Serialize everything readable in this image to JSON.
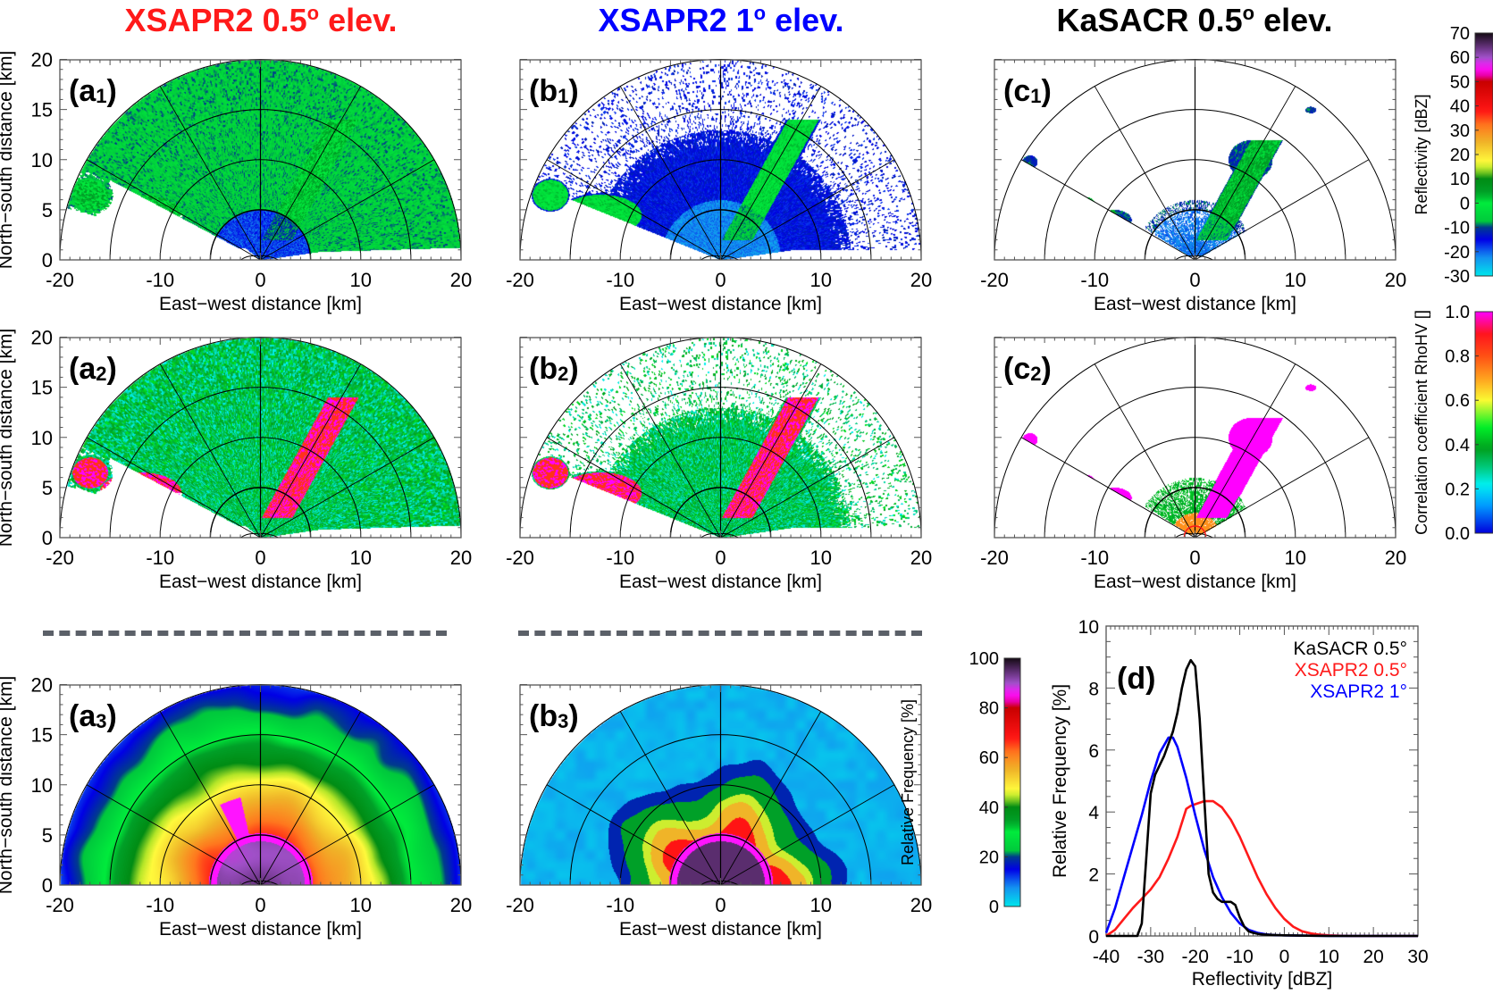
{
  "column_titles": [
    {
      "text": "XSAPR2 0.5° elev.",
      "color": "#ff1a1a"
    },
    {
      "text": "XSAPR2 1° elev.",
      "color": "#0000ff"
    },
    {
      "text": "KaSACR 0.5° elev.",
      "color": "#000000"
    }
  ],
  "axes": {
    "xlabel": "East−west distance [km]",
    "ylabel": "North−south distance [km]",
    "xticks": [
      "-20",
      "-10",
      "0",
      "10",
      "20"
    ],
    "yticks": [
      "0",
      "5",
      "10",
      "15",
      "20"
    ]
  },
  "panels": [
    {
      "id": "a1",
      "label": "(a",
      "sub": "1",
      "field": "reflectivity",
      "radar": "XSAPR2",
      "elevation": "0.5°"
    },
    {
      "id": "b1",
      "label": "(b",
      "sub": "1",
      "field": "reflectivity",
      "radar": "XSAPR2",
      "elevation": "1°"
    },
    {
      "id": "c1",
      "label": "(c",
      "sub": "1",
      "field": "reflectivity",
      "radar": "KaSACR",
      "elevation": "0.5°"
    },
    {
      "id": "a2",
      "label": "(a",
      "sub": "2",
      "field": "rhohv",
      "radar": "XSAPR2",
      "elevation": "0.5°"
    },
    {
      "id": "b2",
      "label": "(b",
      "sub": "2",
      "field": "rhohv",
      "radar": "XSAPR2",
      "elevation": "1°"
    },
    {
      "id": "c2",
      "label": "(c",
      "sub": "2",
      "field": "rhohv",
      "radar": "KaSACR",
      "elevation": "0.5°"
    },
    {
      "id": "a3",
      "label": "(a",
      "sub": "3",
      "field": "frequency",
      "radar": "XSAPR2",
      "elevation": "0.5°"
    },
    {
      "id": "b3",
      "label": "(b",
      "sub": "3",
      "field": "frequency",
      "radar": "XSAPR2",
      "elevation": "1°"
    }
  ],
  "colorbars": {
    "reflectivity": {
      "label": "Reflectivity [dBZ]",
      "ticks": [
        "70",
        "60",
        "50",
        "40",
        "30",
        "20",
        "10",
        "0",
        "-10",
        "-20",
        "-30"
      ],
      "range": [
        -30,
        70
      ]
    },
    "rhohv": {
      "label": "Correlation coefficient RhoHV []",
      "ticks": [
        "1.0",
        "0.8",
        "0.6",
        "0.4",
        "0.2",
        "0.0"
      ],
      "range": [
        0,
        1
      ]
    },
    "frequency": {
      "label": "Relative Frequency [%]",
      "ticks": [
        "100",
        "80",
        "60",
        "40",
        "20",
        "0"
      ],
      "range": [
        0,
        100
      ]
    }
  },
  "chart_data": [
    {
      "type": "heatmap",
      "title": "Radar PPI panels (a1-c2, a3, b3)",
      "xlabel": "East−west distance [km]",
      "ylabel": "North−south distance [km]",
      "xlim": [
        -20,
        20
      ],
      "ylim": [
        0,
        20
      ],
      "range_rings_km": [
        5,
        10,
        15,
        20
      ],
      "azimuth_spokes_deg": [
        -60,
        -30,
        0,
        30,
        60
      ],
      "grid": true
    },
    {
      "type": "line",
      "panel_label": "(d)",
      "title": "",
      "xlabel": "Reflectivity [dBZ]",
      "ylabel": "Relative Frequency [%]",
      "xlim": [
        -40,
        30
      ],
      "ylim": [
        0,
        10
      ],
      "xticks": [
        "-40",
        "-30",
        "-20",
        "-10",
        "0",
        "10",
        "20",
        "30"
      ],
      "yticks": [
        "0",
        "2",
        "4",
        "6",
        "8",
        "10"
      ],
      "legend_position": "top-right",
      "series": [
        {
          "name": "KaSACR 0.5°",
          "color": "#000000",
          "x": [
            -40,
            -33,
            -32,
            -31,
            -30,
            -29,
            -28,
            -27,
            -26,
            -25,
            -24,
            -23,
            -22,
            -21,
            -20,
            -19,
            -18,
            -17,
            -16,
            -15,
            -14,
            -13,
            -12,
            -11,
            -10,
            -9,
            -8,
            -7,
            -6,
            -5,
            -4,
            -2,
            0,
            5,
            10,
            20,
            30
          ],
          "y": [
            0,
            0,
            0.4,
            2.5,
            4.6,
            5.2,
            5.5,
            5.8,
            6.2,
            6.6,
            7.2,
            8.0,
            8.6,
            8.9,
            8.7,
            7.0,
            4.5,
            2.0,
            1.4,
            1.2,
            1.1,
            1.1,
            1.1,
            1.0,
            0.6,
            0.3,
            0.15,
            0.1,
            0.07,
            0.05,
            0.04,
            0.03,
            0.02,
            0.01,
            0,
            0,
            0
          ]
        },
        {
          "name": "XSAPR2 0.5°",
          "color": "#ff1a1a",
          "x": [
            -40,
            -38,
            -36,
            -34,
            -32,
            -30,
            -28,
            -26,
            -24,
            -22,
            -21,
            -20,
            -18,
            -16,
            -14,
            -12,
            -10,
            -8,
            -6,
            -4,
            -2,
            0,
            2,
            4,
            6,
            8,
            10,
            12,
            15,
            20,
            30
          ],
          "y": [
            0,
            0.2,
            0.55,
            0.9,
            1.2,
            1.5,
            1.9,
            2.5,
            3.2,
            4.1,
            4.2,
            4.25,
            4.35,
            4.35,
            4.15,
            3.75,
            3.2,
            2.55,
            1.9,
            1.35,
            0.9,
            0.55,
            0.3,
            0.15,
            0.08,
            0.04,
            0.02,
            0.01,
            0,
            0,
            0
          ]
        },
        {
          "name": "XSAPR2 1°",
          "color": "#0000ff",
          "x": [
            -40,
            -38,
            -36,
            -34,
            -32,
            -30,
            -28,
            -26,
            -25,
            -24,
            -22,
            -20,
            -18,
            -16,
            -14,
            -12,
            -10,
            -8,
            -6,
            -4,
            -2,
            0,
            5,
            10,
            20,
            30
          ],
          "y": [
            0.1,
            0.9,
            1.9,
            2.9,
            3.9,
            5.0,
            5.9,
            6.4,
            6.4,
            6.1,
            5.1,
            3.9,
            2.8,
            1.9,
            1.25,
            0.75,
            0.4,
            0.2,
            0.1,
            0.05,
            0.03,
            0.02,
            0.01,
            0,
            0,
            0
          ]
        }
      ]
    }
  ]
}
